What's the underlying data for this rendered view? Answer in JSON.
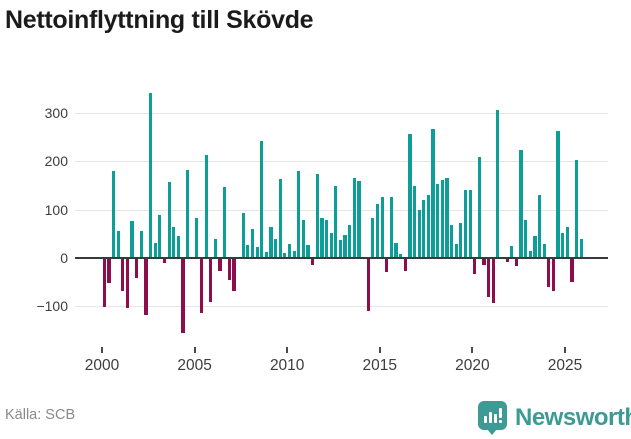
{
  "title": "Nettoinflyttning till Skövde",
  "footer": {
    "source_label": "Källa: SCB",
    "brand": "Newsworthy"
  },
  "chart_data": {
    "type": "bar",
    "title": "Nettoinflyttning till Skövde",
    "frequency": "quarterly",
    "start_period": "2000Q1",
    "end_period": "2025Q4",
    "positive_color": "#0d9e97",
    "negative_color": "#8e0d4d",
    "grid": true,
    "ylim": [
      -170,
      360
    ],
    "y_ticks": [
      {
        "value": 300,
        "label": "300"
      },
      {
        "value": 200,
        "label": "200"
      },
      {
        "value": 100,
        "label": "100"
      },
      {
        "value": 0,
        "label": "0"
      },
      {
        "value": -100,
        "label": "−100"
      }
    ],
    "x_tick_labels": [
      "2000",
      "2005",
      "2010",
      "2015",
      "2020",
      "2025"
    ],
    "series": [
      {
        "year": 2000,
        "values": [
          -102,
          -52,
          179,
          55
        ]
      },
      {
        "year": 2001,
        "values": [
          -69,
          -104,
          76,
          -41
        ]
      },
      {
        "year": 2002,
        "values": [
          55,
          -117,
          340,
          30
        ]
      },
      {
        "year": 2003,
        "values": [
          88,
          -10,
          156,
          63
        ]
      },
      {
        "year": 2004,
        "values": [
          45,
          -155,
          181,
          0
        ]
      },
      {
        "year": 2005,
        "values": [
          83,
          -114,
          212,
          -90
        ]
      },
      {
        "year": 2006,
        "values": [
          40,
          -26,
          146,
          -45
        ]
      },
      {
        "year": 2007,
        "values": [
          -69,
          0,
          93,
          26
        ]
      },
      {
        "year": 2008,
        "values": [
          59,
          22,
          241,
          12
        ]
      },
      {
        "year": 2009,
        "values": [
          65,
          39,
          164,
          10
        ]
      },
      {
        "year": 2010,
        "values": [
          28,
          14,
          179,
          79
        ]
      },
      {
        "year": 2011,
        "values": [
          26,
          -14,
          174,
          83
        ]
      },
      {
        "year": 2012,
        "values": [
          79,
          52,
          148,
          38
        ]
      },
      {
        "year": 2013,
        "values": [
          48,
          69,
          166,
          159
        ]
      },
      {
        "year": 2014,
        "values": [
          0,
          -110,
          83,
          112
        ]
      },
      {
        "year": 2015,
        "values": [
          126,
          -28,
          126,
          30
        ]
      },
      {
        "year": 2016,
        "values": [
          9,
          -26,
          256,
          148
        ]
      },
      {
        "year": 2017,
        "values": [
          100,
          119,
          131,
          267
        ]
      },
      {
        "year": 2018,
        "values": [
          152,
          161,
          166,
          69
        ]
      },
      {
        "year": 2019,
        "values": [
          28,
          72,
          141,
          141
        ]
      },
      {
        "year": 2020,
        "values": [
          -34,
          208,
          -14,
          -81
        ]
      },
      {
        "year": 2021,
        "values": [
          -92,
          305,
          0,
          -9
        ]
      },
      {
        "year": 2022,
        "values": [
          24,
          -16,
          223,
          79
        ]
      },
      {
        "year": 2023,
        "values": [
          15,
          46,
          131,
          28
        ]
      },
      {
        "year": 2024,
        "values": [
          -59,
          -69,
          262,
          52
        ]
      },
      {
        "year": 2025,
        "values": [
          63,
          -50,
          202,
          40
        ]
      }
    ]
  }
}
